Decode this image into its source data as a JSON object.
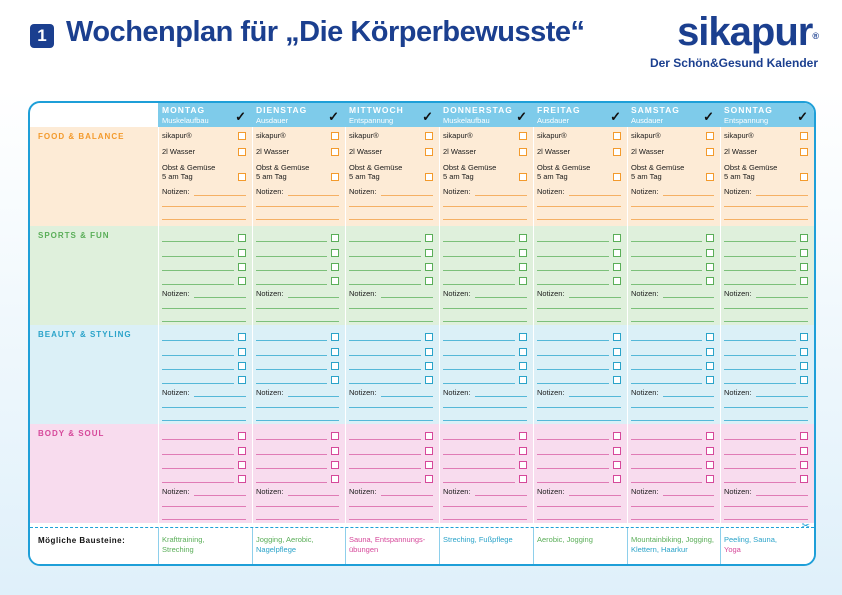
{
  "header": {
    "number": "1",
    "title": "Wochenplan für „Die Körperbewusste“",
    "brand": "sikapur",
    "brand_reg": "®",
    "tagline": "Der Schön&Gesund Kalender"
  },
  "days": [
    {
      "name": "MONTAG",
      "sub": "Muskelaufbau"
    },
    {
      "name": "DIENSTAG",
      "sub": "Ausdauer"
    },
    {
      "name": "MITTWOCH",
      "sub": "Entspannung"
    },
    {
      "name": "DONNERSTAG",
      "sub": "Muskelaufbau"
    },
    {
      "name": "FREITAG",
      "sub": "Ausdauer"
    },
    {
      "name": "SAMSTAG",
      "sub": "Ausdauer"
    },
    {
      "name": "SONNTAG",
      "sub": "Entspannung"
    }
  ],
  "check_mark": "✓",
  "sections": [
    {
      "label": "FOOD & BALANCE",
      "color": "#f39a2c",
      "bg": "#fdebd6",
      "line": "#f5b064"
    },
    {
      "label": "SPORTS & FUN",
      "color": "#5aae58",
      "bg": "#dff0dc",
      "line": "#7cc07a"
    },
    {
      "label": "BEAUTY & STYLING",
      "color": "#2aa3c9",
      "bg": "#dbf0f7",
      "line": "#55b8d8"
    },
    {
      "label": "BODY & SOUL",
      "color": "#d6489a",
      "bg": "#f8dcee",
      "line": "#e07bb5"
    }
  ],
  "food_items": {
    "sikapur": "sikapur®",
    "wasser": "2l Wasser",
    "obst1": "Obst & Gemüse",
    "obst2": "5 am Tag"
  },
  "notes_label": "Notizen:",
  "bausteine_label": "Mögliche Bausteine:",
  "bausteine": [
    [
      {
        "t": "Krafttraining,",
        "c": "#5aae58"
      },
      {
        "t": "Streching",
        "c": "#5aae58"
      }
    ],
    [
      {
        "t": "Jogging, Aerobic,",
        "c": "#5aae58"
      },
      {
        "t": "Nagelpflege",
        "c": "#2aa3c9"
      }
    ],
    [
      {
        "t": "Sauna, Entspannungs-",
        "c": "#d6489a"
      },
      {
        "t": "übungen",
        "c": "#d6489a"
      }
    ],
    [
      {
        "t": "Streching, Fußpflege",
        "c": "#2aa3c9"
      }
    ],
    [
      {
        "t": "Aerobic, Jogging",
        "c": "#5aae58"
      }
    ],
    [
      {
        "t": "Mountainbiking, Jogging,",
        "c": "#5aae58"
      },
      {
        "t": "Klettern, Haarkur",
        "c": "#2aa3c9"
      }
    ],
    [
      {
        "t": "Peeling, Sauna,",
        "c": "#2aa3c9"
      },
      {
        "t": "Yoga",
        "c": "#d6489a"
      }
    ]
  ]
}
